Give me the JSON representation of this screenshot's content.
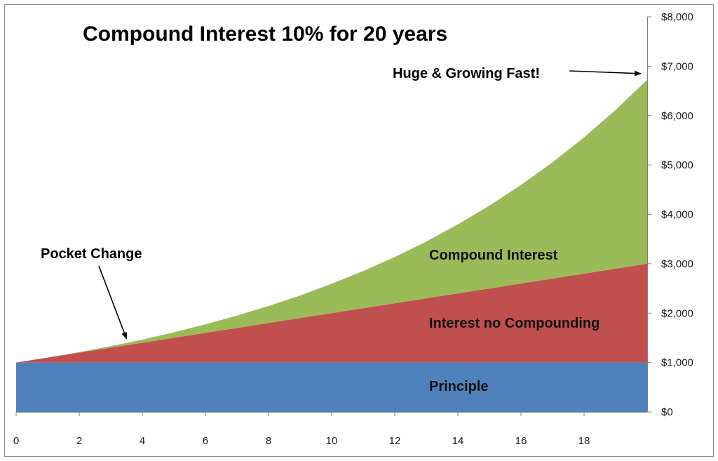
{
  "chart_data": {
    "type": "area",
    "title": "Compound Interest 10% for 20 years",
    "xlabel": "",
    "ylabel": "",
    "x_range": [
      0,
      20
    ],
    "x_ticks": [
      "0",
      "2",
      "4",
      "6",
      "8",
      "10",
      "12",
      "14",
      "16",
      "18"
    ],
    "ylim": [
      0,
      8000
    ],
    "y_ticks": [
      "$0",
      "$1,000",
      "$2,000",
      "$3,000",
      "$4,000",
      "$5,000",
      "$6,000",
      "$7,000",
      "$8,000"
    ],
    "y_axis_side": "right",
    "grid": false,
    "stacked": true,
    "x": [
      0,
      1,
      2,
      3,
      4,
      5,
      6,
      7,
      8,
      9,
      10,
      11,
      12,
      13,
      14,
      15,
      16,
      17,
      18,
      19,
      20
    ],
    "series": [
      {
        "name": "Principle",
        "color": "#4f81bd",
        "values": [
          1000,
          1000,
          1000,
          1000,
          1000,
          1000,
          1000,
          1000,
          1000,
          1000,
          1000,
          1000,
          1000,
          1000,
          1000,
          1000,
          1000,
          1000,
          1000,
          1000,
          1000
        ]
      },
      {
        "name": "Interest no Compounding",
        "color": "#c0504d",
        "values": [
          0,
          100,
          200,
          300,
          400,
          500,
          600,
          700,
          800,
          900,
          1000,
          1100,
          1200,
          1300,
          1400,
          1500,
          1600,
          1700,
          1800,
          1900,
          2000
        ]
      },
      {
        "name": "Compound Interest",
        "color": "#9bbb59",
        "values": [
          0,
          0,
          10,
          31,
          64,
          111,
          172,
          249,
          344,
          458,
          594,
          753,
          938,
          1152,
          1397,
          1677,
          1995,
          2354,
          2760,
          3216,
          3727
        ]
      }
    ],
    "annotations": [
      {
        "text": "Huge & Growing Fast!",
        "points_to": {
          "x": 19.8,
          "y": 6850
        }
      },
      {
        "text": "Pocket Change",
        "points_to": {
          "x": 3.5,
          "y": 1480
        }
      }
    ]
  }
}
